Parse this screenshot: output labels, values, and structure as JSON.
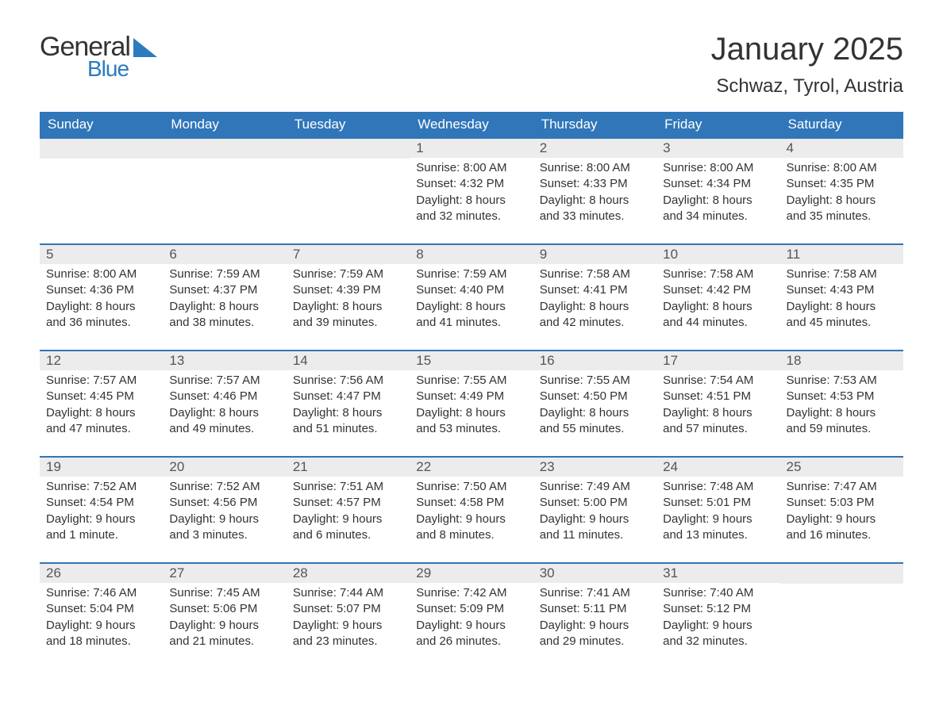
{
  "logo": {
    "text_general": "General",
    "text_blue": "Blue",
    "triangle_color": "#2c7bc0"
  },
  "title": "January 2025",
  "location": "Schwaz, Tyrol, Austria",
  "colors": {
    "header_bg": "#3076b9",
    "header_text": "#ffffff",
    "daynum_bg": "#ececec",
    "daynum_text": "#555555",
    "body_text": "#333333",
    "row_divider": "#3076b9",
    "page_bg": "#ffffff"
  },
  "weekdays": [
    "Sunday",
    "Monday",
    "Tuesday",
    "Wednesday",
    "Thursday",
    "Friday",
    "Saturday"
  ],
  "weeks": [
    [
      {
        "empty": true
      },
      {
        "empty": true
      },
      {
        "empty": true
      },
      {
        "day": "1",
        "sunrise": "Sunrise: 8:00 AM",
        "sunset": "Sunset: 4:32 PM",
        "daylight1": "Daylight: 8 hours",
        "daylight2": "and 32 minutes."
      },
      {
        "day": "2",
        "sunrise": "Sunrise: 8:00 AM",
        "sunset": "Sunset: 4:33 PM",
        "daylight1": "Daylight: 8 hours",
        "daylight2": "and 33 minutes."
      },
      {
        "day": "3",
        "sunrise": "Sunrise: 8:00 AM",
        "sunset": "Sunset: 4:34 PM",
        "daylight1": "Daylight: 8 hours",
        "daylight2": "and 34 minutes."
      },
      {
        "day": "4",
        "sunrise": "Sunrise: 8:00 AM",
        "sunset": "Sunset: 4:35 PM",
        "daylight1": "Daylight: 8 hours",
        "daylight2": "and 35 minutes."
      }
    ],
    [
      {
        "day": "5",
        "sunrise": "Sunrise: 8:00 AM",
        "sunset": "Sunset: 4:36 PM",
        "daylight1": "Daylight: 8 hours",
        "daylight2": "and 36 minutes."
      },
      {
        "day": "6",
        "sunrise": "Sunrise: 7:59 AM",
        "sunset": "Sunset: 4:37 PM",
        "daylight1": "Daylight: 8 hours",
        "daylight2": "and 38 minutes."
      },
      {
        "day": "7",
        "sunrise": "Sunrise: 7:59 AM",
        "sunset": "Sunset: 4:39 PM",
        "daylight1": "Daylight: 8 hours",
        "daylight2": "and 39 minutes."
      },
      {
        "day": "8",
        "sunrise": "Sunrise: 7:59 AM",
        "sunset": "Sunset: 4:40 PM",
        "daylight1": "Daylight: 8 hours",
        "daylight2": "and 41 minutes."
      },
      {
        "day": "9",
        "sunrise": "Sunrise: 7:58 AM",
        "sunset": "Sunset: 4:41 PM",
        "daylight1": "Daylight: 8 hours",
        "daylight2": "and 42 minutes."
      },
      {
        "day": "10",
        "sunrise": "Sunrise: 7:58 AM",
        "sunset": "Sunset: 4:42 PM",
        "daylight1": "Daylight: 8 hours",
        "daylight2": "and 44 minutes."
      },
      {
        "day": "11",
        "sunrise": "Sunrise: 7:58 AM",
        "sunset": "Sunset: 4:43 PM",
        "daylight1": "Daylight: 8 hours",
        "daylight2": "and 45 minutes."
      }
    ],
    [
      {
        "day": "12",
        "sunrise": "Sunrise: 7:57 AM",
        "sunset": "Sunset: 4:45 PM",
        "daylight1": "Daylight: 8 hours",
        "daylight2": "and 47 minutes."
      },
      {
        "day": "13",
        "sunrise": "Sunrise: 7:57 AM",
        "sunset": "Sunset: 4:46 PM",
        "daylight1": "Daylight: 8 hours",
        "daylight2": "and 49 minutes."
      },
      {
        "day": "14",
        "sunrise": "Sunrise: 7:56 AM",
        "sunset": "Sunset: 4:47 PM",
        "daylight1": "Daylight: 8 hours",
        "daylight2": "and 51 minutes."
      },
      {
        "day": "15",
        "sunrise": "Sunrise: 7:55 AM",
        "sunset": "Sunset: 4:49 PM",
        "daylight1": "Daylight: 8 hours",
        "daylight2": "and 53 minutes."
      },
      {
        "day": "16",
        "sunrise": "Sunrise: 7:55 AM",
        "sunset": "Sunset: 4:50 PM",
        "daylight1": "Daylight: 8 hours",
        "daylight2": "and 55 minutes."
      },
      {
        "day": "17",
        "sunrise": "Sunrise: 7:54 AM",
        "sunset": "Sunset: 4:51 PM",
        "daylight1": "Daylight: 8 hours",
        "daylight2": "and 57 minutes."
      },
      {
        "day": "18",
        "sunrise": "Sunrise: 7:53 AM",
        "sunset": "Sunset: 4:53 PM",
        "daylight1": "Daylight: 8 hours",
        "daylight2": "and 59 minutes."
      }
    ],
    [
      {
        "day": "19",
        "sunrise": "Sunrise: 7:52 AM",
        "sunset": "Sunset: 4:54 PM",
        "daylight1": "Daylight: 9 hours",
        "daylight2": "and 1 minute."
      },
      {
        "day": "20",
        "sunrise": "Sunrise: 7:52 AM",
        "sunset": "Sunset: 4:56 PM",
        "daylight1": "Daylight: 9 hours",
        "daylight2": "and 3 minutes."
      },
      {
        "day": "21",
        "sunrise": "Sunrise: 7:51 AM",
        "sunset": "Sunset: 4:57 PM",
        "daylight1": "Daylight: 9 hours",
        "daylight2": "and 6 minutes."
      },
      {
        "day": "22",
        "sunrise": "Sunrise: 7:50 AM",
        "sunset": "Sunset: 4:58 PM",
        "daylight1": "Daylight: 9 hours",
        "daylight2": "and 8 minutes."
      },
      {
        "day": "23",
        "sunrise": "Sunrise: 7:49 AM",
        "sunset": "Sunset: 5:00 PM",
        "daylight1": "Daylight: 9 hours",
        "daylight2": "and 11 minutes."
      },
      {
        "day": "24",
        "sunrise": "Sunrise: 7:48 AM",
        "sunset": "Sunset: 5:01 PM",
        "daylight1": "Daylight: 9 hours",
        "daylight2": "and 13 minutes."
      },
      {
        "day": "25",
        "sunrise": "Sunrise: 7:47 AM",
        "sunset": "Sunset: 5:03 PM",
        "daylight1": "Daylight: 9 hours",
        "daylight2": "and 16 minutes."
      }
    ],
    [
      {
        "day": "26",
        "sunrise": "Sunrise: 7:46 AM",
        "sunset": "Sunset: 5:04 PM",
        "daylight1": "Daylight: 9 hours",
        "daylight2": "and 18 minutes."
      },
      {
        "day": "27",
        "sunrise": "Sunrise: 7:45 AM",
        "sunset": "Sunset: 5:06 PM",
        "daylight1": "Daylight: 9 hours",
        "daylight2": "and 21 minutes."
      },
      {
        "day": "28",
        "sunrise": "Sunrise: 7:44 AM",
        "sunset": "Sunset: 5:07 PM",
        "daylight1": "Daylight: 9 hours",
        "daylight2": "and 23 minutes."
      },
      {
        "day": "29",
        "sunrise": "Sunrise: 7:42 AM",
        "sunset": "Sunset: 5:09 PM",
        "daylight1": "Daylight: 9 hours",
        "daylight2": "and 26 minutes."
      },
      {
        "day": "30",
        "sunrise": "Sunrise: 7:41 AM",
        "sunset": "Sunset: 5:11 PM",
        "daylight1": "Daylight: 9 hours",
        "daylight2": "and 29 minutes."
      },
      {
        "day": "31",
        "sunrise": "Sunrise: 7:40 AM",
        "sunset": "Sunset: 5:12 PM",
        "daylight1": "Daylight: 9 hours",
        "daylight2": "and 32 minutes."
      },
      {
        "empty": true
      }
    ]
  ]
}
